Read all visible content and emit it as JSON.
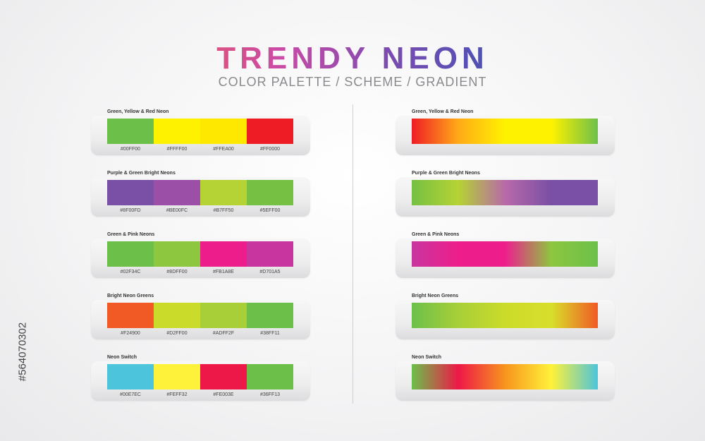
{
  "title": "TRENDY NEON",
  "subtitle": "COLOR PALETTE / SCHEME / GRADIENT",
  "watermark": "#564070302",
  "palettes": [
    {
      "name": "Green, Yellow & Red Neon",
      "swatches": [
        {
          "hex": "#00FF00",
          "color": "#6cc04a"
        },
        {
          "hex": "#FFFF00",
          "color": "#fff200"
        },
        {
          "hex": "#FFEA00",
          "color": "#ffe800"
        },
        {
          "hex": "#FF0000",
          "color": "#ee1c25"
        }
      ],
      "gradient": [
        "#ee1c25",
        "#ffaa17",
        "#fff200",
        "#fff200",
        "#6cc04a"
      ]
    },
    {
      "name": "Purple & Green Bright Neons",
      "swatches": [
        {
          "hex": "#8F00FD",
          "color": "#7a4fa6"
        },
        {
          "hex": "#BE00FC",
          "color": "#9b4fa6"
        },
        {
          "hex": "#B7FF50",
          "color": "#b5d334"
        },
        {
          "hex": "#5EFF00",
          "color": "#76c043"
        }
      ],
      "gradient": [
        "#76c043",
        "#b5d334",
        "#b86aa8",
        "#7a4fa6",
        "#7a4fa6"
      ]
    },
    {
      "name": "Green & Pink Neons",
      "swatches": [
        {
          "hex": "#02F34C",
          "color": "#6cc04a"
        },
        {
          "hex": "#8DFF00",
          "color": "#8dc63f"
        },
        {
          "hex": "#FB1A8E",
          "color": "#ed1e8c"
        },
        {
          "hex": "#D701A5",
          "color": "#c9359e"
        }
      ],
      "gradient": [
        "#c9359e",
        "#ed1e8c",
        "#ed1e8c",
        "#8dc63f",
        "#6cc04a"
      ]
    },
    {
      "name": "Bright Neon Greens",
      "swatches": [
        {
          "hex": "#F24900",
          "color": "#f15a24"
        },
        {
          "hex": "#D2FF00",
          "color": "#cbdb2a"
        },
        {
          "hex": "#ADFF2F",
          "color": "#a8cf38"
        },
        {
          "hex": "#38FF11",
          "color": "#6cc04a"
        }
      ],
      "gradient": [
        "#6cc04a",
        "#a8cf38",
        "#cbdb2a",
        "#d8df2b",
        "#f15a24"
      ]
    },
    {
      "name": "Neon Switch",
      "swatches": [
        {
          "hex": "#00E7EC",
          "color": "#4cc4dc"
        },
        {
          "hex": "#FEFF32",
          "color": "#fff23a"
        },
        {
          "hex": "#FE003E",
          "color": "#ee1848"
        },
        {
          "hex": "#36FF13",
          "color": "#6cc04a"
        }
      ],
      "gradient": [
        "#6cc04a",
        "#ee1848",
        "#f7941d",
        "#fff23a",
        "#4cc4dc"
      ]
    }
  ]
}
